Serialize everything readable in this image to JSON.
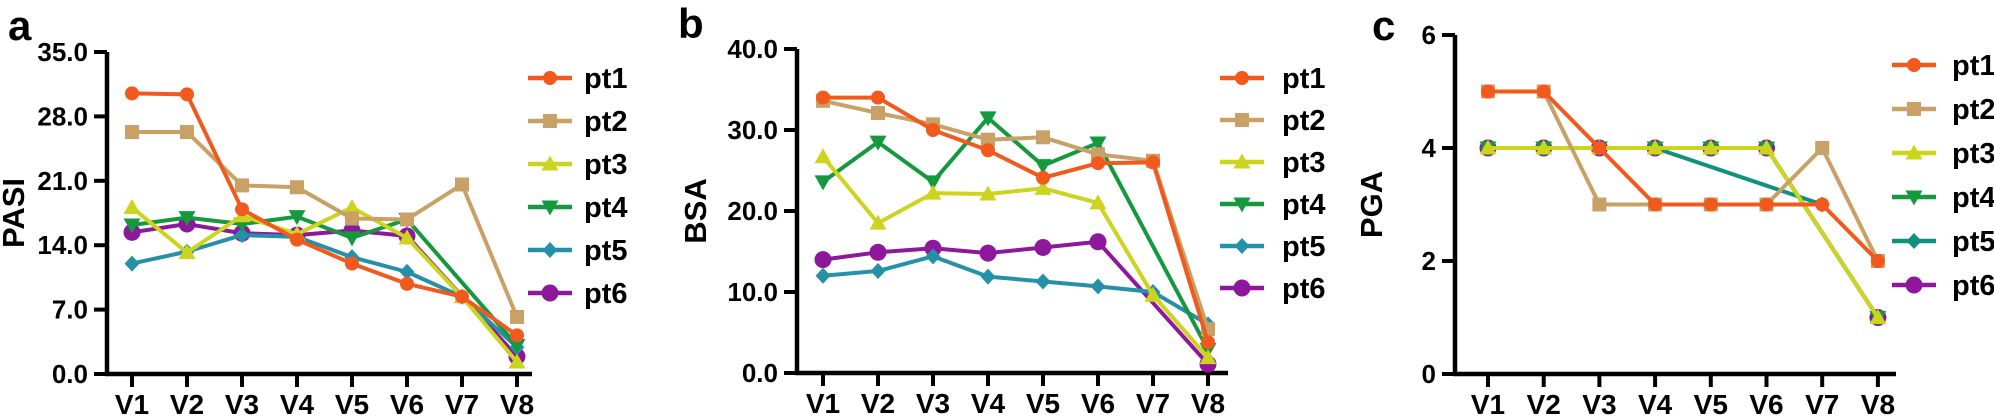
{
  "figure": {
    "background": "#ffffff",
    "text_color": "#000000",
    "axis_color": "#000000"
  },
  "chart_data": [
    {
      "type": "line",
      "panel_label": "a",
      "ylabel": "PASI",
      "xlabel": "",
      "categories": [
        "V1",
        "V2",
        "V3",
        "V4",
        "V5",
        "V6",
        "V7",
        "V8"
      ],
      "ylim": [
        0,
        35
      ],
      "yticks": [
        0,
        7,
        14,
        21,
        28,
        35
      ],
      "ytick_labels": [
        "0.0",
        "7.0",
        "14.0",
        "21.0",
        "28.0",
        "35.0"
      ],
      "grid": false,
      "legend_position": "right",
      "series": [
        {
          "name": "pt1",
          "color": "#F2591D",
          "marker": "circle",
          "values": [
            30.5,
            30.4,
            17.9,
            14.6,
            12.0,
            9.8,
            8.4,
            4.2
          ]
        },
        {
          "name": "pt2",
          "color": "#C9A066",
          "marker": "square",
          "values": [
            26.3,
            26.3,
            20.5,
            20.3,
            16.9,
            16.8,
            20.6,
            6.2
          ]
        },
        {
          "name": "pt3",
          "color": "#CCD41E",
          "marker": "triangle-up",
          "values": [
            18.1,
            13.2,
            17.2,
            15.2,
            18.1,
            14.8,
            8.4,
            1.3
          ]
        },
        {
          "name": "pt4",
          "color": "#14993F",
          "marker": "triangle-down",
          "values": [
            16.2,
            17.0,
            16.3,
            17.1,
            14.8,
            16.8,
            null,
            3.1
          ]
        },
        {
          "name": "pt5",
          "color": "#2591A9",
          "marker": "diamond",
          "values": [
            12.0,
            13.3,
            15.1,
            14.9,
            12.7,
            11.1,
            8.4,
            2.9
          ]
        },
        {
          "name": "pt6",
          "color": "#8E189B",
          "marker": "circle-lg",
          "values": [
            15.4,
            16.3,
            15.3,
            15.1,
            15.6,
            15.0,
            null,
            1.9
          ]
        }
      ]
    },
    {
      "type": "line",
      "panel_label": "b",
      "ylabel": "BSA",
      "xlabel": "",
      "categories": [
        "V1",
        "V2",
        "V3",
        "V4",
        "V5",
        "V6",
        "V7",
        "V8"
      ],
      "ylim": [
        0,
        40
      ],
      "yticks": [
        0,
        10,
        20,
        30,
        40
      ],
      "ytick_labels": [
        "0.0",
        "10.0",
        "20.0",
        "30.0",
        "40.0"
      ],
      "grid": false,
      "legend_position": "right",
      "series": [
        {
          "name": "pt1",
          "color": "#F2591D",
          "marker": "circle",
          "values": [
            34.0,
            34.0,
            30.0,
            27.5,
            24.1,
            25.9,
            26.0,
            3.8
          ]
        },
        {
          "name": "pt2",
          "color": "#C9A066",
          "marker": "square",
          "values": [
            33.6,
            32.1,
            30.7,
            28.8,
            29.1,
            27.0,
            26.2,
            5.4
          ]
        },
        {
          "name": "pt3",
          "color": "#CCD41E",
          "marker": "triangle-up",
          "values": [
            26.7,
            18.5,
            22.2,
            22.1,
            22.8,
            21.0,
            9.6,
            1.9
          ]
        },
        {
          "name": "pt4",
          "color": "#14993F",
          "marker": "triangle-down",
          "values": [
            23.6,
            28.5,
            23.6,
            31.5,
            25.6,
            28.4,
            null,
            2.9
          ]
        },
        {
          "name": "pt5",
          "color": "#2591A9",
          "marker": "diamond",
          "values": [
            12.0,
            12.6,
            14.4,
            11.9,
            11.3,
            10.7,
            10.0,
            6.0
          ]
        },
        {
          "name": "pt6",
          "color": "#8E189B",
          "marker": "circle-lg",
          "values": [
            14.0,
            14.9,
            15.4,
            14.8,
            15.5,
            16.2,
            null,
            1.1
          ]
        }
      ]
    },
    {
      "type": "line",
      "panel_label": "c",
      "ylabel": "PGA",
      "xlabel": "",
      "categories": [
        "V1",
        "V2",
        "V3",
        "V4",
        "V5",
        "V6",
        "V7",
        "V8"
      ],
      "ylim": [
        0,
        6
      ],
      "yticks": [
        0,
        2,
        4,
        6
      ],
      "ytick_labels": [
        "0",
        "2",
        "4",
        "6"
      ],
      "grid": false,
      "legend_position": "right",
      "series": [
        {
          "name": "pt1",
          "color": "#F2591D",
          "marker": "circle",
          "values": [
            5,
            5,
            4,
            3,
            3,
            3,
            3,
            2
          ]
        },
        {
          "name": "pt2",
          "color": "#C9A066",
          "marker": "square",
          "values": [
            5,
            5,
            3,
            3,
            3,
            3,
            4,
            2
          ]
        },
        {
          "name": "pt3",
          "color": "#CCD41E",
          "marker": "triangle-up",
          "values": [
            4,
            4,
            4,
            4,
            4,
            4,
            null,
            1
          ]
        },
        {
          "name": "pt4",
          "color": "#14993F",
          "marker": "triangle-down",
          "values": [
            4,
            4,
            4,
            4,
            4,
            4,
            null,
            1
          ]
        },
        {
          "name": "pt5",
          "color": "#10917D",
          "marker": "diamond",
          "values": [
            4,
            4,
            4,
            4,
            null,
            null,
            3,
            null
          ]
        },
        {
          "name": "pt6",
          "color": "#8E189B",
          "marker": "circle-lg",
          "values": [
            4,
            4,
            4,
            4,
            4,
            4,
            null,
            1
          ]
        }
      ]
    }
  ]
}
